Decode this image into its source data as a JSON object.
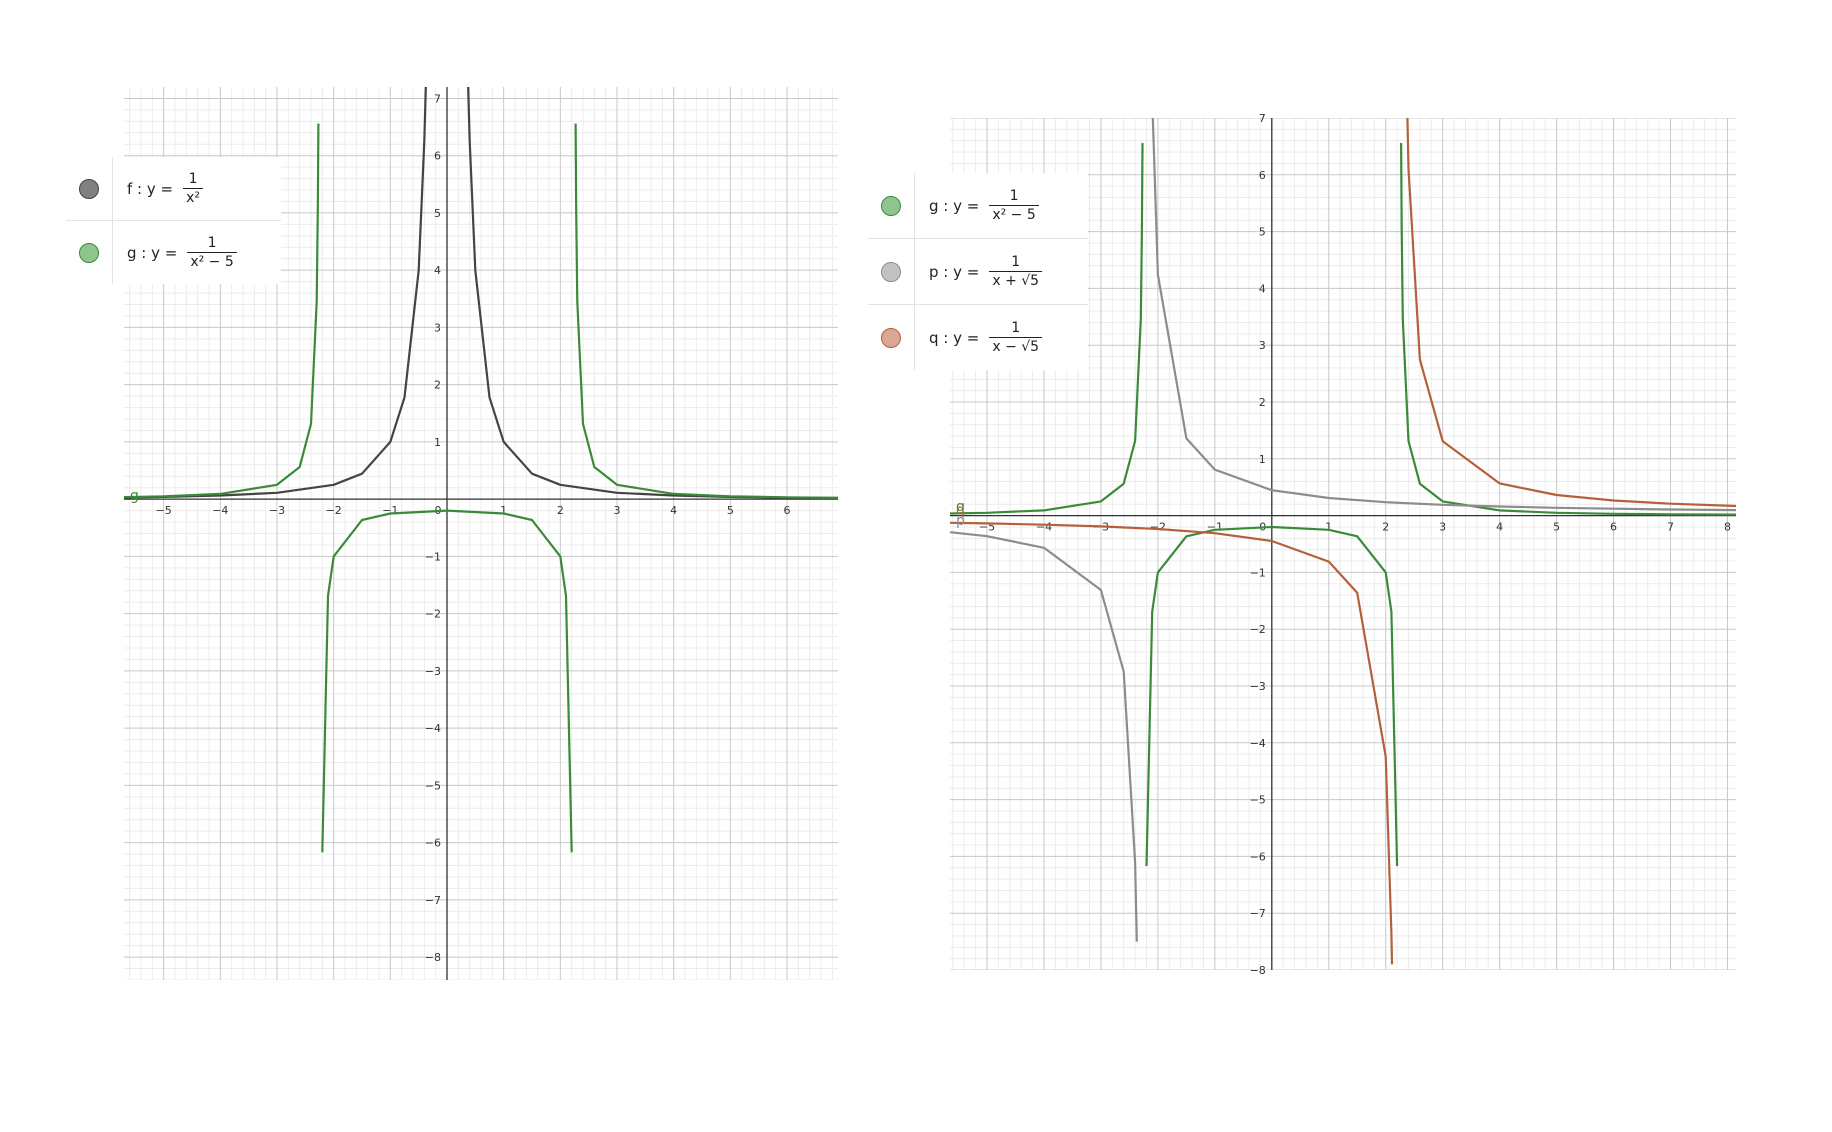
{
  "chart_data": [
    {
      "type": "line",
      "xlim": [
        -5.7,
        6.9
      ],
      "ylim": [
        -8.4,
        7.2
      ],
      "x_ticks": [
        "-5",
        "-4",
        "-3",
        "-2",
        "-1",
        "0",
        "1",
        "2",
        "3",
        "4",
        "5",
        "6"
      ],
      "y_ticks": [
        "-8",
        "-7",
        "-6",
        "-5",
        "-4",
        "-3",
        "-2",
        "-1",
        "1",
        "2",
        "3",
        "4",
        "5",
        "6",
        "7"
      ],
      "grid": true,
      "legend": "top-left",
      "series": [
        {
          "name": "f",
          "label": "f : y =",
          "numerator": "1",
          "denominator": "x²",
          "color": "#444444",
          "fill": "#808080",
          "asymptotes": [
            0
          ],
          "points": [
            [
              -5.7,
              0.031
            ],
            [
              -5,
              0.04
            ],
            [
              -4,
              0.063
            ],
            [
              -3,
              0.111
            ],
            [
              -2,
              0.25
            ],
            [
              -1.5,
              0.444
            ],
            [
              -1,
              1
            ],
            [
              -0.75,
              1.778
            ],
            [
              -0.5,
              4
            ],
            [
              -0.4,
              6.25
            ],
            [
              -0.37,
              7.3
            ],
            [
              0.37,
              7.3
            ],
            [
              0.4,
              6.25
            ],
            [
              0.5,
              4
            ],
            [
              0.75,
              1.778
            ],
            [
              1,
              1
            ],
            [
              1.5,
              0.444
            ],
            [
              2,
              0.25
            ],
            [
              3,
              0.111
            ],
            [
              4,
              0.063
            ],
            [
              5,
              0.04
            ],
            [
              6,
              0.028
            ],
            [
              6.9,
              0.021
            ]
          ]
        },
        {
          "name": "g",
          "label": "g : y =",
          "numerator": "1",
          "denominator": "x² − 5",
          "color": "#3a8a3a",
          "fill": "#8fc48f",
          "asymptotes": [
            -2.236,
            2.236
          ],
          "points": [
            [
              -5.7,
              0.036
            ],
            [
              -5,
              0.05
            ],
            [
              -4,
              0.091
            ],
            [
              -3,
              0.25
            ],
            [
              -2.6,
              0.562
            ],
            [
              -2.4,
              1.314
            ],
            [
              -2.3,
              3.45
            ],
            [
              -2.28,
              5.03
            ],
            [
              -2.27,
              6.56
            ],
            [
              -2.2,
              -6.17
            ],
            [
              -2.1,
              -1.69
            ],
            [
              -2,
              -1
            ],
            [
              -1.5,
              -0.364
            ],
            [
              -1,
              -0.25
            ],
            [
              0,
              -0.2
            ],
            [
              1,
              -0.25
            ],
            [
              1.5,
              -0.364
            ],
            [
              2,
              -1
            ],
            [
              2.1,
              -1.69
            ],
            [
              2.2,
              -6.17
            ],
            [
              2.27,
              6.56
            ],
            [
              2.28,
              5.03
            ],
            [
              2.3,
              3.45
            ],
            [
              2.4,
              1.314
            ],
            [
              2.6,
              0.562
            ],
            [
              3,
              0.25
            ],
            [
              4,
              0.091
            ],
            [
              5,
              0.05
            ],
            [
              6,
              0.032
            ],
            [
              6.9,
              0.024
            ]
          ]
        }
      ],
      "point_label": "g"
    },
    {
      "type": "line",
      "xlim": [
        -5.65,
        8.15
      ],
      "ylim": [
        -8,
        7
      ],
      "x_ticks": [
        "-5",
        "-4",
        "-3",
        "-2",
        "-1",
        "0",
        "1",
        "2",
        "3",
        "4",
        "5",
        "6",
        "7",
        "8"
      ],
      "y_ticks": [
        "-8",
        "-7",
        "-6",
        "-5",
        "-4",
        "-3",
        "-2",
        "-1",
        "1",
        "2",
        "3",
        "4",
        "5",
        "6",
        "7"
      ],
      "grid": true,
      "legend": "top-left",
      "series": [
        {
          "name": "g",
          "label": "g : y =",
          "numerator": "1",
          "denominator": "x² − 5",
          "color": "#3a8a3a",
          "fill": "#8fc48f",
          "asymptotes": [
            -2.236,
            2.236
          ],
          "points": [
            [
              -5.65,
              0.037
            ],
            [
              -5,
              0.05
            ],
            [
              -4,
              0.091
            ],
            [
              -3,
              0.25
            ],
            [
              -2.6,
              0.562
            ],
            [
              -2.4,
              1.314
            ],
            [
              -2.3,
              3.45
            ],
            [
              -2.28,
              5.03
            ],
            [
              -2.27,
              6.56
            ],
            [
              -2.2,
              -6.17
            ],
            [
              -2.1,
              -1.69
            ],
            [
              -2,
              -1
            ],
            [
              -1.5,
              -0.364
            ],
            [
              -1,
              -0.25
            ],
            [
              0,
              -0.2
            ],
            [
              1,
              -0.25
            ],
            [
              1.5,
              -0.364
            ],
            [
              2,
              -1
            ],
            [
              2.1,
              -1.69
            ],
            [
              2.2,
              -6.17
            ],
            [
              2.27,
              6.56
            ],
            [
              2.28,
              5.03
            ],
            [
              2.3,
              3.45
            ],
            [
              2.4,
              1.314
            ],
            [
              2.6,
              0.562
            ],
            [
              3,
              0.25
            ],
            [
              4,
              0.091
            ],
            [
              5,
              0.05
            ],
            [
              6,
              0.032
            ],
            [
              7,
              0.023
            ],
            [
              8.15,
              0.017
            ]
          ]
        },
        {
          "name": "p",
          "label": "p : y =",
          "numerator": "1",
          "denominator": "x + √5",
          "color": "#8c8c8c",
          "fill": "#c2c2c2",
          "asymptotes": [
            -2.236
          ],
          "points": [
            [
              -5.65,
              -0.293
            ],
            [
              -5,
              -0.362
            ],
            [
              -4,
              -0.567
            ],
            [
              -3,
              -1.309
            ],
            [
              -2.6,
              -2.747
            ],
            [
              -2.4,
              -6.1
            ],
            [
              -2.37,
              -7.5
            ],
            [
              -2.11,
              7.9
            ],
            [
              -2.1,
              7.35
            ],
            [
              -2,
              4.24
            ],
            [
              -1.5,
              1.359
            ],
            [
              -1,
              0.809
            ],
            [
              0,
              0.447
            ],
            [
              1,
              0.309
            ],
            [
              2,
              0.236
            ],
            [
              3,
              0.191
            ],
            [
              4,
              0.16
            ],
            [
              5,
              0.138
            ],
            [
              6,
              0.121
            ],
            [
              7,
              0.108
            ],
            [
              8.15,
              0.096
            ]
          ]
        },
        {
          "name": "q",
          "label": "q : y =",
          "numerator": "1",
          "denominator": "x − √5",
          "color": "#b5603a",
          "fill": "#d9a893",
          "asymptotes": [
            2.236
          ],
          "points": [
            [
              -5.65,
              -0.127
            ],
            [
              -5,
              -0.138
            ],
            [
              -4,
              -0.16
            ],
            [
              -3,
              -0.191
            ],
            [
              -2,
              -0.236
            ],
            [
              -1,
              -0.309
            ],
            [
              0,
              -0.447
            ],
            [
              1,
              -0.809
            ],
            [
              1.5,
              -1.359
            ],
            [
              2,
              -4.24
            ],
            [
              2.1,
              -7.35
            ],
            [
              2.11,
              -7.9
            ],
            [
              2.37,
              7.5
            ],
            [
              2.4,
              6.1
            ],
            [
              2.6,
              2.747
            ],
            [
              3,
              1.309
            ],
            [
              4,
              0.567
            ],
            [
              5,
              0.362
            ],
            [
              6,
              0.266
            ],
            [
              7,
              0.21
            ],
            [
              8.15,
              0.169
            ]
          ]
        }
      ],
      "point_labels": [
        "g",
        "q",
        "p"
      ]
    }
  ]
}
